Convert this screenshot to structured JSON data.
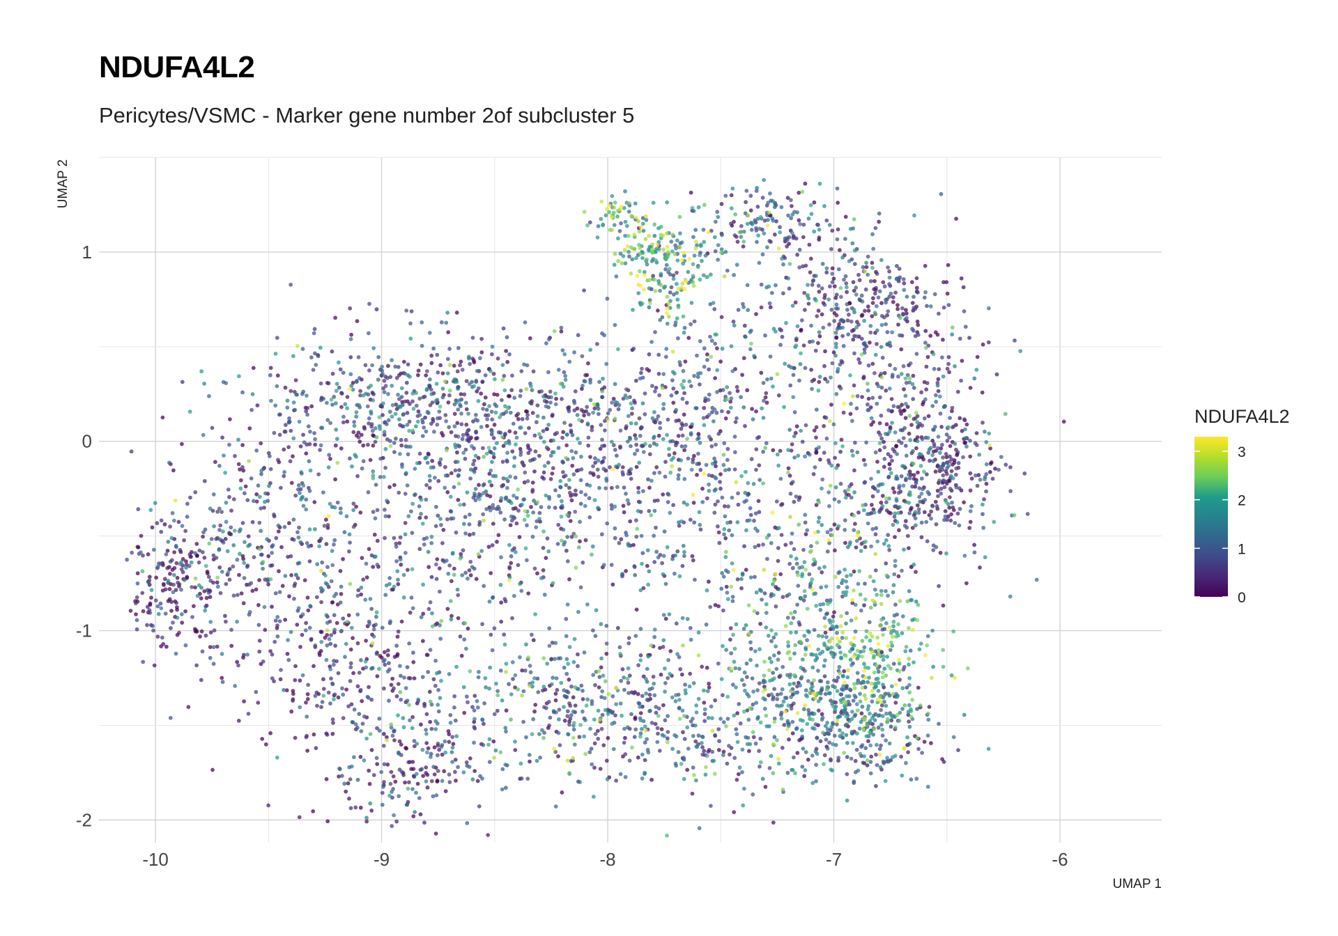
{
  "title": "NDUFA4L2",
  "subtitle": "Pericytes/VSMC - Marker gene number 2of subcluster 5",
  "chart_data": {
    "type": "scatter",
    "title": "NDUFA4L2",
    "subtitle": "Pericytes/VSMC - Marker gene number 2of subcluster 5",
    "xlabel": "UMAP 1",
    "ylabel": "UMAP 2",
    "xlim": [
      -10.25,
      -5.55
    ],
    "ylim": [
      -2.12,
      1.5
    ],
    "x_ticks": [
      -10,
      -9,
      -8,
      -7,
      -6
    ],
    "y_ticks": [
      -2,
      -1,
      0,
      1
    ],
    "x_tick_labels": [
      "-10",
      "-9",
      "-8",
      "-7",
      "-6"
    ],
    "y_tick_labels": [
      "-2",
      "-1",
      "0",
      "1"
    ],
    "grid": true,
    "color_scale": "viridis",
    "legend": {
      "title": "NDUFA4L2",
      "placement": "right",
      "range": [
        0,
        3.3
      ],
      "ticks": [
        0,
        1,
        2,
        3
      ],
      "tick_labels": [
        "0",
        "1",
        "2",
        "3"
      ],
      "colors": [
        "#440154",
        "#3b528b",
        "#21918c",
        "#5ec962",
        "#fde725"
      ]
    },
    "point_count_note": "dense cloud of cells; representative density regions listed",
    "regions": [
      {
        "x": -9.9,
        "y": -0.75,
        "sx": 0.15,
        "sy": 0.18,
        "n": 220,
        "mean_expr": 0.3
      },
      {
        "x": -9.55,
        "y": -0.45,
        "sx": 0.25,
        "sy": 0.3,
        "n": 260,
        "mean_expr": 0.6
      },
      {
        "x": -9.2,
        "y": -1.2,
        "sx": 0.25,
        "sy": 0.25,
        "n": 240,
        "mean_expr": 0.3
      },
      {
        "x": -8.9,
        "y": -1.75,
        "sx": 0.2,
        "sy": 0.15,
        "n": 160,
        "mean_expr": 0.3
      },
      {
        "x": -9.0,
        "y": 0.2,
        "sx": 0.3,
        "sy": 0.2,
        "n": 320,
        "mean_expr": 0.8
      },
      {
        "x": -8.5,
        "y": 0.1,
        "sx": 0.35,
        "sy": 0.25,
        "n": 420,
        "mean_expr": 0.8
      },
      {
        "x": -8.3,
        "y": -0.3,
        "sx": 0.4,
        "sy": 0.25,
        "n": 360,
        "mean_expr": 0.6
      },
      {
        "x": -8.8,
        "y": -0.7,
        "sx": 0.35,
        "sy": 0.3,
        "n": 220,
        "mean_expr": 0.9
      },
      {
        "x": -8.3,
        "y": -1.4,
        "sx": 0.35,
        "sy": 0.18,
        "n": 300,
        "mean_expr": 1.1
      },
      {
        "x": -7.7,
        "y": 0.1,
        "sx": 0.3,
        "sy": 0.25,
        "n": 300,
        "mean_expr": 0.7
      },
      {
        "x": -7.5,
        "y": -0.6,
        "sx": 0.35,
        "sy": 0.35,
        "n": 260,
        "mean_expr": 0.9
      },
      {
        "x": -7.7,
        "y": -1.5,
        "sx": 0.3,
        "sy": 0.2,
        "n": 280,
        "mean_expr": 0.9
      },
      {
        "x": -7.75,
        "y": 0.95,
        "sx": 0.12,
        "sy": 0.12,
        "n": 180,
        "mean_expr": 1.9
      },
      {
        "x": -7.95,
        "y": 1.2,
        "sx": 0.07,
        "sy": 0.05,
        "n": 50,
        "mean_expr": 2.1
      },
      {
        "x": -7.25,
        "y": 1.15,
        "sx": 0.15,
        "sy": 0.1,
        "n": 140,
        "mean_expr": 1.0
      },
      {
        "x": -7.4,
        "y": 0.6,
        "sx": 0.3,
        "sy": 0.3,
        "n": 200,
        "mean_expr": 1.1
      },
      {
        "x": -6.85,
        "y": 0.75,
        "sx": 0.15,
        "sy": 0.15,
        "n": 180,
        "mean_expr": 0.5
      },
      {
        "x": -6.7,
        "y": 0.35,
        "sx": 0.2,
        "sy": 0.25,
        "n": 220,
        "mean_expr": 0.5
      },
      {
        "x": -6.55,
        "y": -0.15,
        "sx": 0.15,
        "sy": 0.2,
        "n": 300,
        "mean_expr": 0.3
      },
      {
        "x": -6.9,
        "y": -0.3,
        "sx": 0.25,
        "sy": 0.25,
        "n": 200,
        "mean_expr": 1.0
      },
      {
        "x": -6.85,
        "y": -1.2,
        "sx": 0.15,
        "sy": 0.2,
        "n": 280,
        "mean_expr": 1.9
      },
      {
        "x": -6.9,
        "y": -1.5,
        "sx": 0.2,
        "sy": 0.15,
        "n": 240,
        "mean_expr": 1.0
      },
      {
        "x": -7.2,
        "y": -1.35,
        "sx": 0.2,
        "sy": 0.2,
        "n": 180,
        "mean_expr": 1.2
      },
      {
        "x": -7.0,
        "y": -0.8,
        "sx": 0.2,
        "sy": 0.2,
        "n": 140,
        "mean_expr": 1.6
      }
    ]
  }
}
